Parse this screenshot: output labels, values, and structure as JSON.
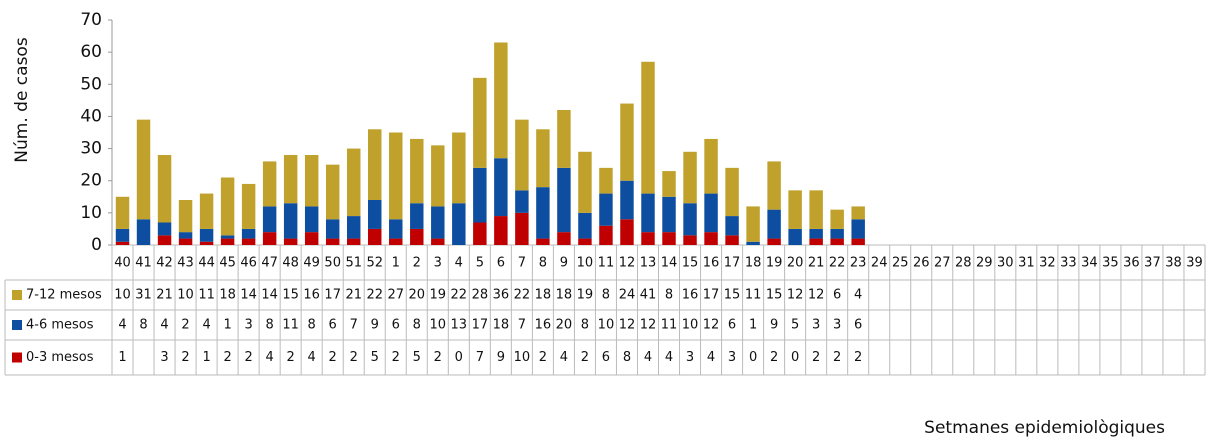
{
  "chart_data": {
    "type": "bar",
    "stacked": true,
    "y_label": "Núm. de casos",
    "x_label": "Setmanes epidemiològiques",
    "categories": [
      "40",
      "41",
      "42",
      "43",
      "44",
      "45",
      "46",
      "47",
      "48",
      "49",
      "50",
      "51",
      "52",
      "1",
      "2",
      "3",
      "4",
      "5",
      "6",
      "7",
      "8",
      "9",
      "10",
      "11",
      "12",
      "13",
      "14",
      "15",
      "16",
      "17",
      "18",
      "19",
      "20",
      "21",
      "22",
      "23",
      "24",
      "25",
      "26",
      "27",
      "28",
      "29",
      "30",
      "31",
      "32",
      "33",
      "34",
      "35",
      "36",
      "37",
      "38",
      "39"
    ],
    "series": [
      {
        "name": "7-12 mesos",
        "color": "#bfa12c",
        "values": [
          10,
          31,
          21,
          10,
          11,
          18,
          14,
          14,
          15,
          16,
          17,
          21,
          22,
          27,
          20,
          19,
          22,
          28,
          36,
          22,
          18,
          18,
          19,
          8,
          24,
          41,
          8,
          16,
          17,
          15,
          11,
          15,
          12,
          12,
          6,
          4,
          null,
          null,
          null,
          null,
          null,
          null,
          null,
          null,
          null,
          null,
          null,
          null,
          null,
          null,
          null,
          null
        ]
      },
      {
        "name": "4-6 mesos",
        "color": "#0e4ea0",
        "values": [
          4,
          8,
          4,
          2,
          4,
          1,
          3,
          8,
          11,
          8,
          6,
          7,
          9,
          6,
          8,
          10,
          13,
          17,
          18,
          7,
          16,
          20,
          8,
          10,
          12,
          12,
          11,
          10,
          12,
          6,
          1,
          9,
          5,
          3,
          3,
          6,
          null,
          null,
          null,
          null,
          null,
          null,
          null,
          null,
          null,
          null,
          null,
          null,
          null,
          null,
          null,
          null
        ]
      },
      {
        "name": "0-3 mesos",
        "color": "#c00000",
        "values": [
          1,
          null,
          3,
          2,
          1,
          2,
          2,
          4,
          2,
          4,
          2,
          2,
          5,
          2,
          5,
          2,
          0,
          7,
          9,
          10,
          2,
          4,
          2,
          6,
          8,
          4,
          4,
          3,
          4,
          3,
          0,
          2,
          0,
          2,
          2,
          2,
          null,
          null,
          null,
          null,
          null,
          null,
          null,
          null,
          null,
          null,
          null,
          null,
          null,
          null,
          null,
          null
        ]
      }
    ],
    "ylim": [
      0,
      70
    ],
    "yticks": [
      0,
      10,
      20,
      30,
      40,
      50,
      60,
      70
    ]
  }
}
